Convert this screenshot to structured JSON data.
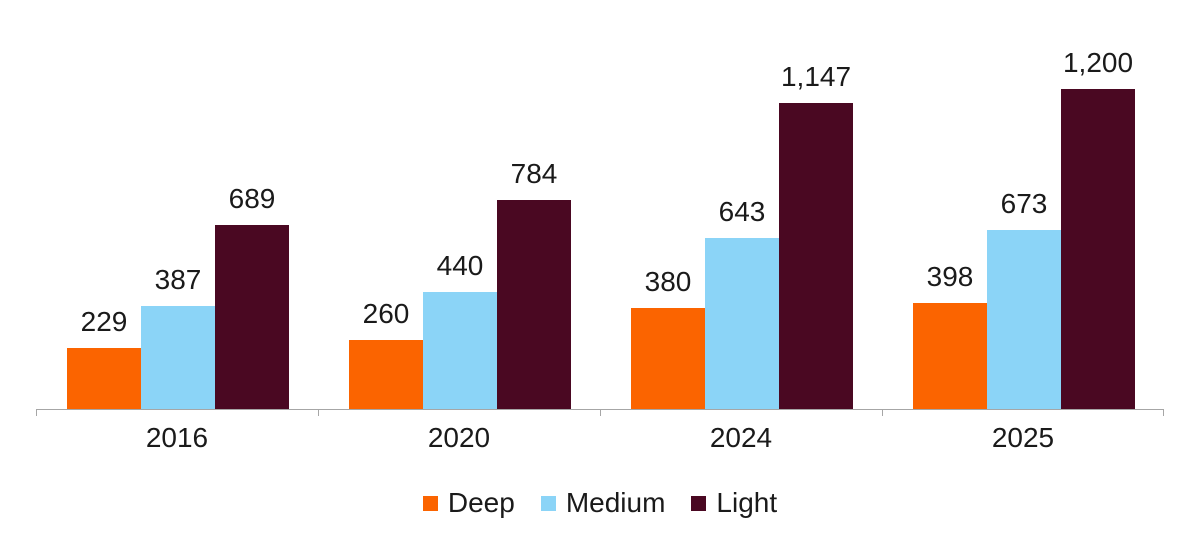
{
  "chart_data": {
    "type": "bar",
    "title": "",
    "categories": [
      "2016",
      "2020",
      "2024",
      "2025"
    ],
    "series": [
      {
        "name": "Deep",
        "color": "#FB6400",
        "values": [
          229,
          260,
          380,
          398
        ],
        "labels": [
          "229",
          "260",
          "380",
          "398"
        ]
      },
      {
        "name": "Medium",
        "color": "#8BD4F7",
        "values": [
          387,
          440,
          643,
          673
        ],
        "labels": [
          "387",
          "440",
          "643",
          "673"
        ]
      },
      {
        "name": "Light",
        "color": "#4A0822",
        "values": [
          689,
          784,
          1147,
          1200
        ],
        "labels": [
          "689",
          "784",
          "1,147",
          "1,200"
        ]
      }
    ],
    "ylim": [
      0,
      1200
    ],
    "grid": false,
    "y_axis_visible": false,
    "legend_position": "bottom",
    "axis_color": "#A6A6A6",
    "label_color": "#1A1A1A"
  }
}
